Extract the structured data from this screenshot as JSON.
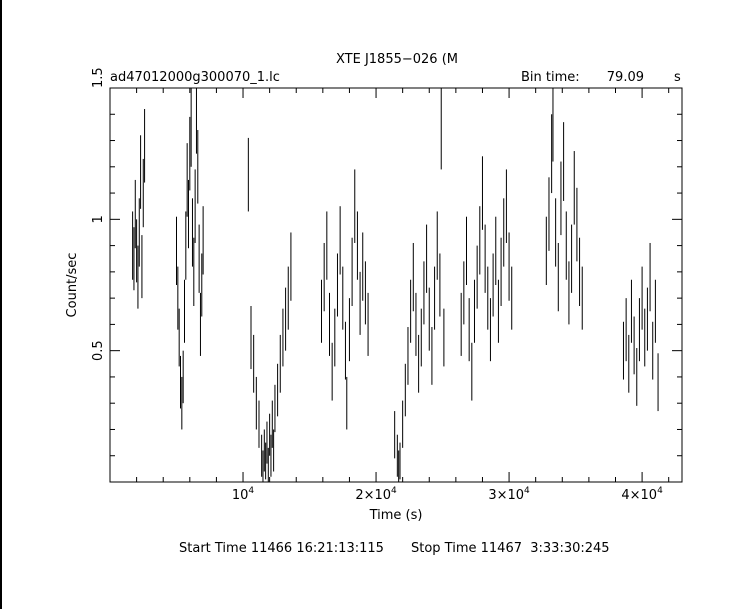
{
  "chart_data": {
    "type": "scatter",
    "title": "XTE J1855−026 (M",
    "file_label": "ad47012000g300070_1.lc",
    "bin_time_label": "Bin time:",
    "bin_time_value": "79.09",
    "bin_time_unit": "s",
    "xlabel": "Time (s)",
    "ylabel": "Count/sec",
    "xlim": [
      0,
      43000
    ],
    "ylim": [
      0,
      1.5
    ],
    "x_tick_labels": [
      {
        "value": 10000,
        "base": "10",
        "exp": "4"
      },
      {
        "value": 20000,
        "base": "2×10",
        "exp": "4"
      },
      {
        "value": 30000,
        "base": "3×10",
        "exp": "4"
      },
      {
        "value": 40000,
        "base": "4×10",
        "exp": "4"
      }
    ],
    "y_tick_labels": [
      {
        "value": 0.5,
        "label": "0.5"
      },
      {
        "value": 1,
        "label": "1"
      },
      {
        "value": 1.5,
        "label": "1.5"
      }
    ],
    "series": [
      {
        "points": [
          [
            1700,
            0.9,
            0.13
          ],
          [
            1800,
            0.85,
            0.12
          ],
          [
            1900,
            1.02,
            0.13
          ],
          [
            2000,
            0.88,
            0.12
          ],
          [
            2100,
            0.78,
            0.12
          ],
          [
            2200,
            0.95,
            0.13
          ],
          [
            2300,
            1.18,
            0.14
          ],
          [
            2400,
            0.82,
            0.12
          ],
          [
            2500,
            1.1,
            0.13
          ],
          [
            2600,
            1.28,
            0.14
          ],
          [
            5000,
            0.88,
            0.13
          ],
          [
            5100,
            0.7,
            0.12
          ],
          [
            5200,
            0.55,
            0.11
          ],
          [
            5300,
            0.38,
            0.1
          ],
          [
            5400,
            0.3,
            0.1
          ],
          [
            5500,
            0.4,
            0.1
          ],
          [
            5600,
            0.65,
            0.12
          ],
          [
            5700,
            0.9,
            0.13
          ],
          [
            5800,
            1.15,
            0.14
          ],
          [
            5900,
            1.02,
            0.13
          ],
          [
            6000,
            1.25,
            0.14
          ],
          [
            6100,
            1.35,
            0.15
          ],
          [
            6200,
            0.95,
            0.13
          ],
          [
            6300,
            0.8,
            0.13
          ],
          [
            6400,
            1.05,
            0.14
          ],
          [
            6500,
            1.4,
            0.15
          ],
          [
            6600,
            1.2,
            0.14
          ],
          [
            6700,
            0.85,
            0.13
          ],
          [
            6800,
            0.6,
            0.12
          ],
          [
            6900,
            0.75,
            0.12
          ],
          [
            7000,
            0.92,
            0.13
          ],
          [
            10400,
            1.17,
            0.14
          ],
          [
            10600,
            0.55,
            0.12
          ],
          [
            10800,
            0.45,
            0.11
          ],
          [
            11000,
            0.3,
            0.1
          ],
          [
            11200,
            0.22,
            0.09
          ],
          [
            11400,
            0.1,
            0.08
          ],
          [
            11500,
            0.05,
            0.07
          ],
          [
            11600,
            0.12,
            0.08
          ],
          [
            11700,
            0.08,
            0.07
          ],
          [
            11800,
            0.15,
            0.08
          ],
          [
            11900,
            0.06,
            0.07
          ],
          [
            12000,
            0.18,
            0.08
          ],
          [
            12100,
            0.1,
            0.08
          ],
          [
            12200,
            0.22,
            0.09
          ],
          [
            12300,
            0.12,
            0.08
          ],
          [
            12400,
            0.28,
            0.09
          ],
          [
            12600,
            0.35,
            0.1
          ],
          [
            12800,
            0.45,
            0.11
          ],
          [
            13000,
            0.55,
            0.11
          ],
          [
            13200,
            0.62,
            0.12
          ],
          [
            13400,
            0.7,
            0.12
          ],
          [
            13600,
            0.82,
            0.13
          ],
          [
            15900,
            0.65,
            0.12
          ],
          [
            16100,
            0.78,
            0.13
          ],
          [
            16300,
            0.9,
            0.13
          ],
          [
            16500,
            0.6,
            0.12
          ],
          [
            16700,
            0.42,
            0.11
          ],
          [
            16900,
            0.55,
            0.11
          ],
          [
            17100,
            0.75,
            0.12
          ],
          [
            17300,
            0.92,
            0.13
          ],
          [
            17500,
            0.7,
            0.12
          ],
          [
            17700,
            0.5,
            0.11
          ],
          [
            17800,
            0.3,
            0.1
          ],
          [
            18000,
            0.58,
            0.12
          ],
          [
            18200,
            0.8,
            0.13
          ],
          [
            18400,
            1.05,
            0.14
          ],
          [
            18600,
            0.9,
            0.13
          ],
          [
            18800,
            0.68,
            0.12
          ],
          [
            19000,
            0.82,
            0.13
          ],
          [
            19200,
            0.72,
            0.12
          ],
          [
            19400,
            0.6,
            0.12
          ],
          [
            21400,
            0.18,
            0.09
          ],
          [
            21600,
            0.1,
            0.08
          ],
          [
            21700,
            0.05,
            0.07
          ],
          [
            21800,
            0.08,
            0.07
          ],
          [
            22000,
            0.22,
            0.09
          ],
          [
            22200,
            0.35,
            0.1
          ],
          [
            22400,
            0.48,
            0.11
          ],
          [
            22600,
            0.65,
            0.12
          ],
          [
            22800,
            0.78,
            0.13
          ],
          [
            23000,
            0.6,
            0.12
          ],
          [
            23200,
            0.45,
            0.11
          ],
          [
            23400,
            0.55,
            0.11
          ],
          [
            23600,
            0.72,
            0.12
          ],
          [
            23800,
            0.85,
            0.13
          ],
          [
            24000,
            0.62,
            0.12
          ],
          [
            24200,
            0.48,
            0.11
          ],
          [
            24400,
            0.7,
            0.12
          ],
          [
            24600,
            0.9,
            0.13
          ],
          [
            24800,
            0.75,
            0.12
          ],
          [
            24900,
            1.35,
            0.16
          ],
          [
            25100,
            0.55,
            0.11
          ],
          [
            26400,
            0.6,
            0.12
          ],
          [
            26600,
            0.72,
            0.12
          ],
          [
            26800,
            0.88,
            0.13
          ],
          [
            27000,
            0.58,
            0.12
          ],
          [
            27200,
            0.42,
            0.11
          ],
          [
            27400,
            0.65,
            0.12
          ],
          [
            27600,
            0.78,
            0.12
          ],
          [
            27800,
            0.92,
            0.13
          ],
          [
            28000,
            1.1,
            0.14
          ],
          [
            28200,
            0.85,
            0.13
          ],
          [
            28400,
            0.7,
            0.12
          ],
          [
            28600,
            0.58,
            0.12
          ],
          [
            28800,
            0.75,
            0.12
          ],
          [
            29000,
            0.88,
            0.13
          ],
          [
            29200,
            0.65,
            0.12
          ],
          [
            29400,
            0.8,
            0.13
          ],
          [
            29600,
            0.95,
            0.13
          ],
          [
            29800,
            1.05,
            0.14
          ],
          [
            30000,
            0.82,
            0.13
          ],
          [
            30200,
            0.7,
            0.12
          ],
          [
            32800,
            0.88,
            0.13
          ],
          [
            33000,
            1.02,
            0.14
          ],
          [
            33200,
            1.25,
            0.15
          ],
          [
            33300,
            1.38,
            0.16
          ],
          [
            33500,
            0.95,
            0.13
          ],
          [
            33700,
            0.78,
            0.13
          ],
          [
            33900,
            1.08,
            0.14
          ],
          [
            34100,
            1.22,
            0.15
          ],
          [
            34300,
            0.9,
            0.13
          ],
          [
            34500,
            0.72,
            0.12
          ],
          [
            34700,
            0.85,
            0.13
          ],
          [
            34900,
            1.12,
            0.14
          ],
          [
            35100,
            0.98,
            0.14
          ],
          [
            35300,
            0.8,
            0.13
          ],
          [
            35500,
            0.7,
            0.12
          ],
          [
            38600,
            0.5,
            0.11
          ],
          [
            38800,
            0.58,
            0.12
          ],
          [
            39000,
            0.45,
            0.11
          ],
          [
            39200,
            0.65,
            0.12
          ],
          [
            39400,
            0.52,
            0.11
          ],
          [
            39600,
            0.4,
            0.11
          ],
          [
            39800,
            0.58,
            0.12
          ],
          [
            40000,
            0.7,
            0.12
          ],
          [
            40200,
            0.55,
            0.11
          ],
          [
            40400,
            0.62,
            0.12
          ],
          [
            40600,
            0.78,
            0.13
          ],
          [
            40800,
            0.5,
            0.11
          ],
          [
            41000,
            0.65,
            0.12
          ],
          [
            41200,
            0.38,
            0.11
          ]
        ]
      }
    ]
  },
  "footer": {
    "start_time": "Start Time 11466 16:21:13:115",
    "stop_time": "Stop Time 11467  3:33:30:245"
  }
}
